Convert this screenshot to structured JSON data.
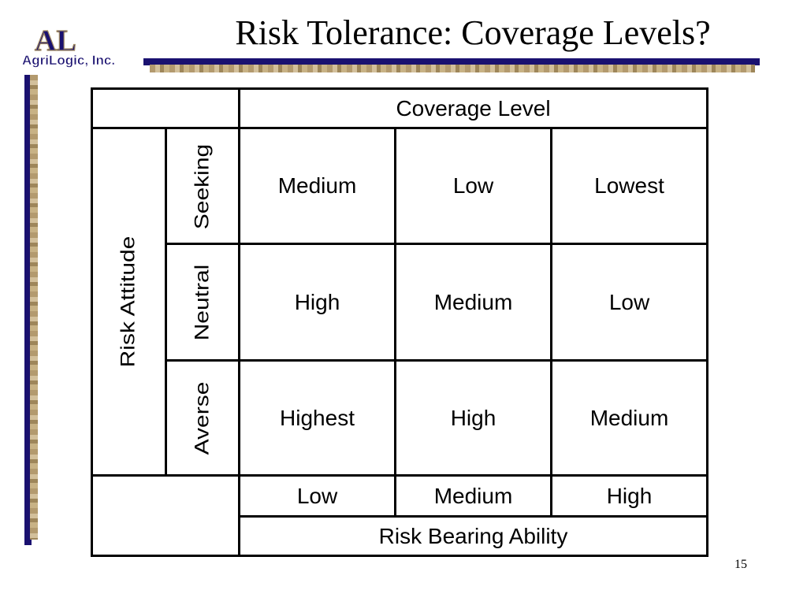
{
  "slide": {
    "title": "Risk Tolerance: Coverage Levels?",
    "page_number": "15"
  },
  "logo": {
    "initials": "AL",
    "company": "AgriLogic, Inc."
  },
  "table": {
    "top_header": "Coverage Level",
    "side_header": "Risk Attitude",
    "bottom_header": "Risk Bearing Ability",
    "row_labels": [
      "Seeking",
      "Neutral",
      "Averse"
    ],
    "column_labels": [
      "Low",
      "Medium",
      "High"
    ],
    "rows": [
      [
        "Medium",
        "Low",
        "Lowest"
      ],
      [
        "High",
        "Medium",
        "Low"
      ],
      [
        "Highest",
        "High",
        "Medium"
      ]
    ]
  },
  "colors": {
    "navy": "#1a1170",
    "tan": "#b39a6e"
  }
}
